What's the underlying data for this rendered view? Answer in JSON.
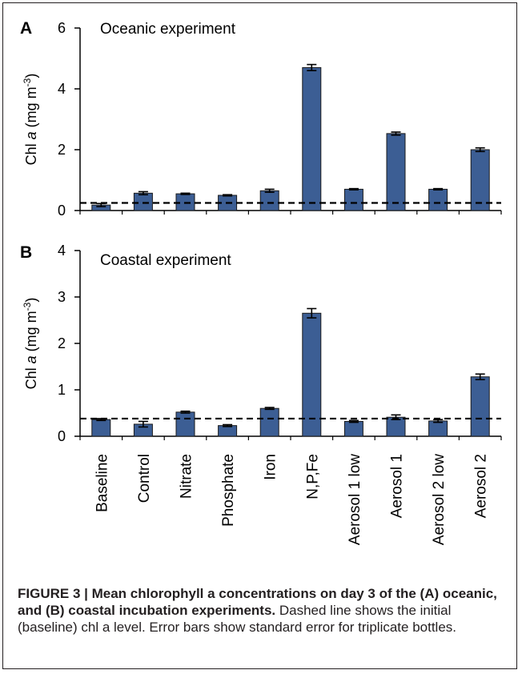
{
  "caption": {
    "bold": "FIGURE 3 | Mean chlorophyll a concentrations on day 3 of the (A) oceanic, and (B) coastal incubation experiments.",
    "rest": " Dashed line shows the initial (baseline) chl a level. Error bars show standard error for triplicate bottles."
  },
  "colors": {
    "bar": "#3c5e94",
    "bar_edge": "#1a1a1a"
  },
  "chart_data": [
    {
      "type": "bar",
      "panel_label": "A",
      "title": "Oceanic experiment",
      "ylabel": "Chl a (mg m-3)",
      "ylim": [
        0,
        6
      ],
      "yticks": [
        0,
        2,
        4,
        6
      ],
      "baseline_dashed": 0.25,
      "categories": [
        "Baseline",
        "Control",
        "Nitrate",
        "Phosphate",
        "Iron",
        "N,P,Fe",
        "Aerosol 1 low",
        "Aerosol 1",
        "Aerosol 2 low",
        "Aerosol 2"
      ],
      "values": [
        0.18,
        0.57,
        0.55,
        0.5,
        0.65,
        4.7,
        0.7,
        2.53,
        0.7,
        2.0
      ],
      "errors": [
        0.05,
        0.05,
        0.02,
        0.02,
        0.05,
        0.1,
        0.02,
        0.05,
        0.02,
        0.06
      ]
    },
    {
      "type": "bar",
      "panel_label": "B",
      "title": "Coastal experiment",
      "ylabel": "Chl a (mg m-3)",
      "ylim": [
        0,
        4
      ],
      "yticks": [
        0,
        1,
        2,
        3,
        4
      ],
      "baseline_dashed": 0.38,
      "categories": [
        "Baseline",
        "Control",
        "Nitrate",
        "Phosphate",
        "Iron",
        "N,P,Fe",
        "Aerosol 1 low",
        "Aerosol 1",
        "Aerosol 2 low",
        "Aerosol 2"
      ],
      "values": [
        0.36,
        0.26,
        0.52,
        0.23,
        0.6,
        2.65,
        0.32,
        0.41,
        0.33,
        1.28
      ],
      "errors": [
        0.02,
        0.06,
        0.02,
        0.02,
        0.02,
        0.1,
        0.02,
        0.05,
        0.03,
        0.06
      ]
    }
  ]
}
